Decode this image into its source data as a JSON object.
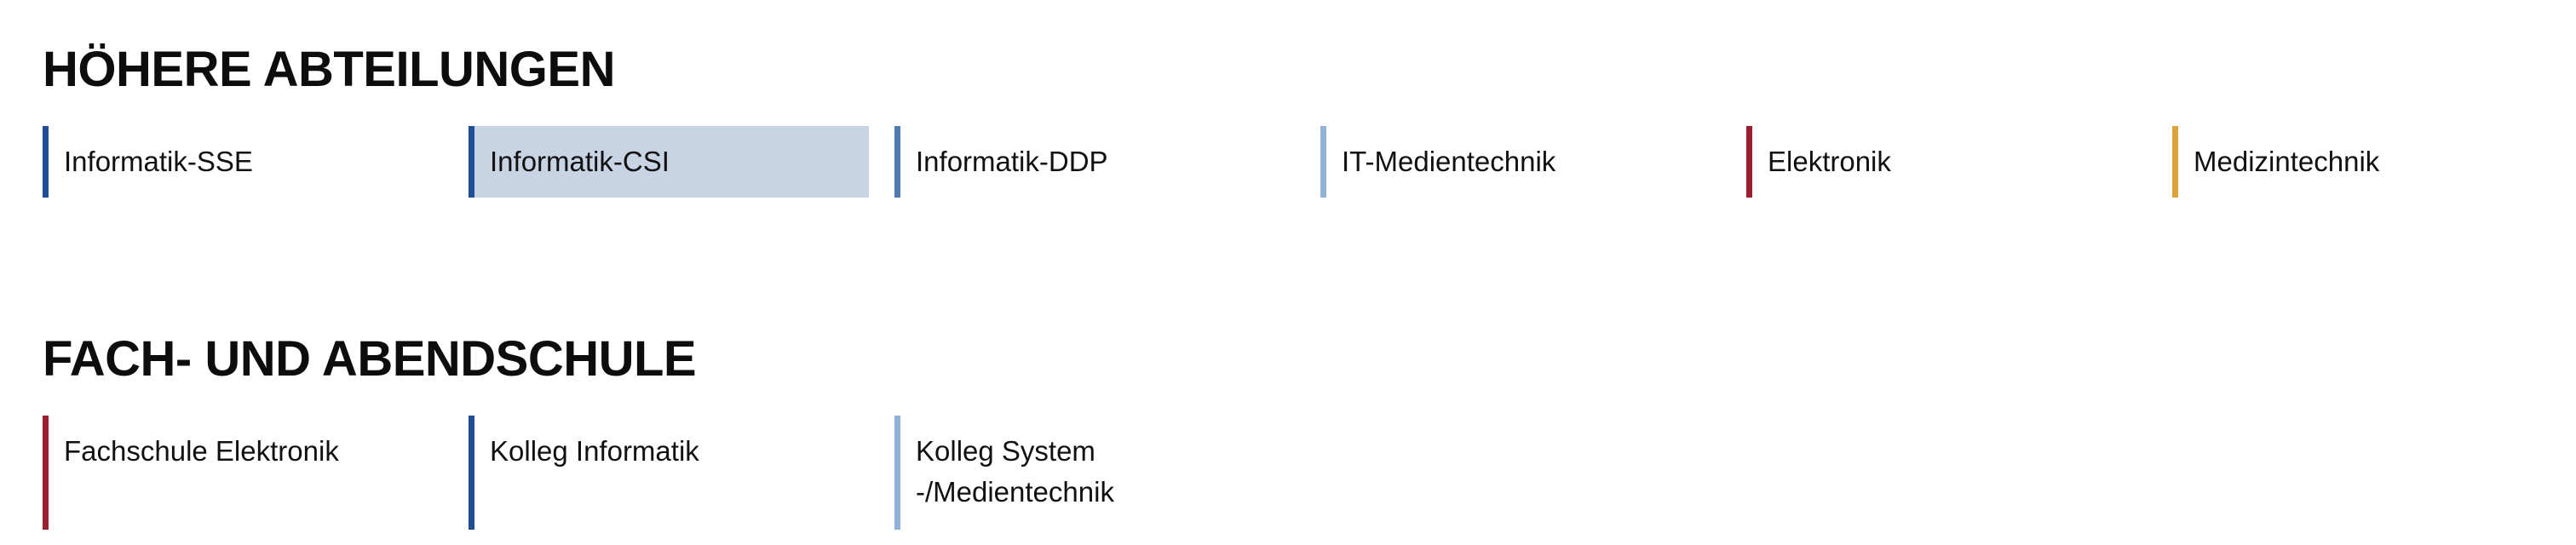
{
  "sections": [
    {
      "title": "HÖHERE ABTEILUNGEN",
      "items": [
        {
          "label": "Informatik-SSE",
          "color": "#1f4e96",
          "active": false
        },
        {
          "label": "Informatik-CSI",
          "color": "#1f4e96",
          "active": true
        },
        {
          "label": "Informatik-DDP",
          "color": "#4f7bb5",
          "active": false
        },
        {
          "label": "IT-Medientechnik",
          "color": "#8fb2d6",
          "active": false
        },
        {
          "label": "Elektronik",
          "color": "#9b1f2e",
          "active": false
        },
        {
          "label": "Medizintechnik",
          "color": "#e0a33a",
          "active": false
        }
      ]
    },
    {
      "title": "FACH- UND ABENDSCHULE",
      "items": [
        {
          "label": "Fachschule Elektronik",
          "color": "#9b1f2e",
          "active": false
        },
        {
          "label": "Kolleg Informatik",
          "color": "#1f4e96",
          "active": false
        },
        {
          "label": "Kolleg System -/Medientechnik",
          "color": "#8fb2d6",
          "active": false
        }
      ]
    }
  ],
  "colors": {
    "active_background": "#c8d4e3"
  }
}
